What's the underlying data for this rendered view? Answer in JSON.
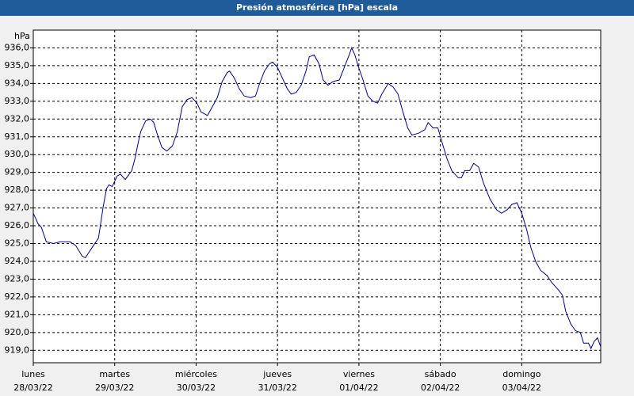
{
  "chart_data": {
    "type": "line",
    "title": "Presión atmosférica [hPa] escala",
    "ylabel": "hPa",
    "xlim": [
      0,
      6.97
    ],
    "ylim": [
      918.3,
      937.0
    ],
    "grid": true,
    "xticks": [
      {
        "value": 0,
        "label": "lunes",
        "sublabel": "28/03/22"
      },
      {
        "value": 1,
        "label": "martes",
        "sublabel": "29/03/22"
      },
      {
        "value": 2,
        "label": "miércoles",
        "sublabel": "30/03/22"
      },
      {
        "value": 3,
        "label": "jueves",
        "sublabel": "31/03/22"
      },
      {
        "value": 4,
        "label": "viernes",
        "sublabel": "01/04/22"
      },
      {
        "value": 5,
        "label": "sábado",
        "sublabel": "02/04/22"
      },
      {
        "value": 6,
        "label": "domingo",
        "sublabel": "03/04/22"
      }
    ],
    "yticks": [
      {
        "value": 919,
        "label": "919,0"
      },
      {
        "value": 920,
        "label": "920,0"
      },
      {
        "value": 921,
        "label": "921,0"
      },
      {
        "value": 922,
        "label": "922,0"
      },
      {
        "value": 923,
        "label": "923,0"
      },
      {
        "value": 924,
        "label": "924,0"
      },
      {
        "value": 925,
        "label": "925,0"
      },
      {
        "value": 926,
        "label": "926,0"
      },
      {
        "value": 927,
        "label": "927,0"
      },
      {
        "value": 928,
        "label": "928,0"
      },
      {
        "value": 929,
        "label": "929,0"
      },
      {
        "value": 930,
        "label": "930,0"
      },
      {
        "value": 931,
        "label": "931,0"
      },
      {
        "value": 932,
        "label": "932,0"
      },
      {
        "value": 933,
        "label": "933,0"
      },
      {
        "value": 934,
        "label": "934,0"
      },
      {
        "value": 935,
        "label": "935,0"
      },
      {
        "value": 936,
        "label": "936,0"
      }
    ],
    "x": [
      0.0,
      0.06,
      0.1,
      0.16,
      0.25,
      0.33,
      0.45,
      0.52,
      0.6,
      0.64,
      0.74,
      0.8,
      0.86,
      0.9,
      0.93,
      0.97,
      1.03,
      1.07,
      1.13,
      1.21,
      1.25,
      1.29,
      1.32,
      1.38,
      1.44,
      1.48,
      1.52,
      1.58,
      1.64,
      1.71,
      1.77,
      1.83,
      1.89,
      1.95,
      2.01,
      2.06,
      2.14,
      2.2,
      2.26,
      2.32,
      2.38,
      2.41,
      2.47,
      2.53,
      2.59,
      2.67,
      2.73,
      2.78,
      2.84,
      2.9,
      2.94,
      3.0,
      3.06,
      3.12,
      3.17,
      3.23,
      3.29,
      3.35,
      3.39,
      3.45,
      3.51,
      3.56,
      3.62,
      3.68,
      3.76,
      3.82,
      3.88,
      3.91,
      3.95,
      3.99,
      4.05,
      4.11,
      4.17,
      4.23,
      4.28,
      4.36,
      4.42,
      4.48,
      4.54,
      4.6,
      4.65,
      4.73,
      4.81,
      4.85,
      4.91,
      4.97,
      5.02,
      5.08,
      5.14,
      5.22,
      5.26,
      5.3,
      5.36,
      5.41,
      5.47,
      5.53,
      5.61,
      5.69,
      5.75,
      5.82,
      5.88,
      5.94,
      6.0,
      6.06,
      6.11,
      6.17,
      6.23,
      6.31,
      6.37,
      6.45,
      6.5,
      6.54,
      6.6,
      6.66,
      6.72,
      6.76,
      6.82,
      6.85,
      6.89,
      6.93,
      6.97
    ],
    "series": [
      {
        "color": "#00008b",
        "values": [
          926.7,
          926.1,
          925.9,
          925.1,
          925.0,
          925.1,
          925.1,
          924.9,
          924.3,
          924.2,
          924.9,
          925.3,
          927.1,
          928.1,
          928.3,
          928.2,
          928.8,
          928.9,
          928.6,
          929.1,
          929.8,
          930.7,
          931.3,
          931.9,
          932.0,
          931.8,
          931.2,
          930.4,
          930.2,
          930.5,
          931.3,
          932.7,
          933.1,
          933.2,
          932.9,
          932.4,
          932.2,
          932.7,
          933.2,
          934.1,
          934.6,
          934.7,
          934.3,
          933.7,
          933.3,
          933.2,
          933.3,
          934.0,
          934.7,
          935.1,
          935.2,
          934.9,
          934.3,
          933.7,
          933.4,
          933.5,
          933.9,
          934.7,
          935.5,
          935.6,
          935.1,
          934.2,
          933.9,
          934.1,
          934.2,
          934.9,
          935.6,
          936.0,
          935.6,
          935.0,
          934.2,
          933.3,
          933.0,
          932.9,
          933.4,
          934.0,
          933.8,
          933.4,
          932.4,
          931.5,
          931.1,
          931.2,
          931.4,
          931.8,
          931.5,
          931.5,
          930.7,
          929.8,
          929.1,
          928.7,
          928.7,
          929.1,
          929.1,
          929.5,
          929.3,
          928.4,
          927.5,
          926.9,
          926.7,
          926.9,
          927.2,
          927.3,
          926.7,
          925.8,
          924.8,
          924.0,
          923.5,
          923.2,
          922.8,
          922.4,
          922.1,
          921.2,
          920.5,
          920.1,
          920.0,
          919.4,
          919.4,
          919.1,
          919.5,
          919.7,
          919.2
        ]
      }
    ]
  }
}
